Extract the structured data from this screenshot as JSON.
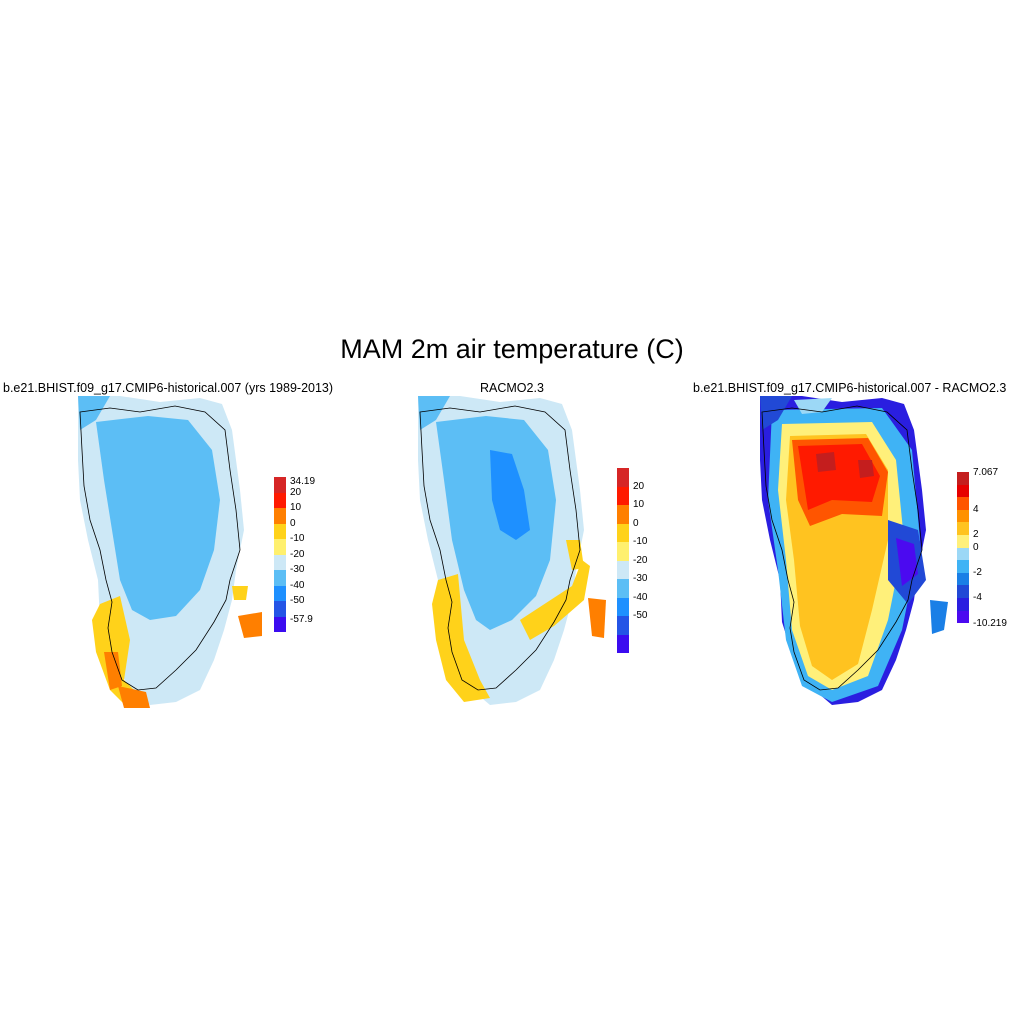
{
  "figure": {
    "title": "MAM 2m air temperature (C)"
  },
  "panels": [
    {
      "title": "b.e21.BHIST.f09_g17.CMIP6-historical.007 (yrs 1989-2013)",
      "colorbar": {
        "colors": [
          "#d62626",
          "#ff1a00",
          "#ff7f00",
          "#ffd21a",
          "#fff06e",
          "#cde8f6",
          "#5cbef5",
          "#1e90ff",
          "#2454e6",
          "#3b0cf0"
        ],
        "labels": [
          "34.19",
          "20",
          "10",
          "0",
          "-10",
          "-20",
          "-30",
          "-40",
          "-50",
          "-57.9"
        ]
      }
    },
    {
      "title": "RACMO2.3",
      "colorbar": {
        "colors": [
          "#d62626",
          "#ff1a00",
          "#ff7f00",
          "#ffd21a",
          "#fff06e",
          "#cde8f6",
          "#5cbef5",
          "#1e90ff",
          "#2454e6",
          "#3b0cf0"
        ],
        "labels": [
          "20",
          "10",
          "0",
          "-10",
          "-20",
          "-30",
          "-40",
          "-50"
        ]
      }
    },
    {
      "title": "b.e21.BHIST.f09_g17.CMIP6-historical.007 - RACMO2.3",
      "colorbar": {
        "colors": [
          "#c41e1e",
          "#e60000",
          "#ff5500",
          "#ff9100",
          "#ffc320",
          "#fff07a",
          "#9cd8f6",
          "#3fb3f5",
          "#1a7fe6",
          "#2149d6",
          "#2a1ee0",
          "#4b0af0"
        ],
        "labels": [
          "7.067",
          "4",
          "2",
          "0",
          "-2",
          "-4",
          "-10.219"
        ]
      }
    }
  ]
}
